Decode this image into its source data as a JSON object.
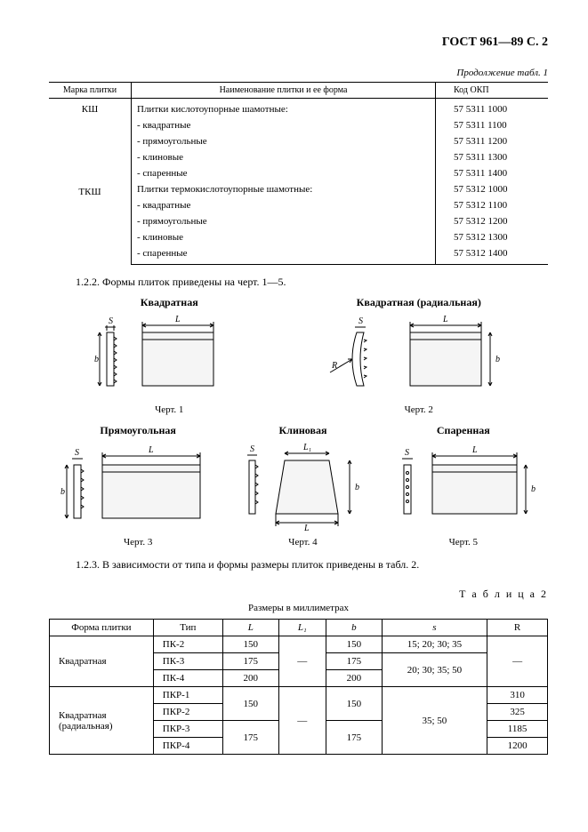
{
  "header": "ГОСТ 961—89 С. 2",
  "continuation": "Продолжение табл. 1",
  "table1": {
    "headers": [
      "Марка плитки",
      "Наименование плитки и ее форма",
      "Код ОКП"
    ],
    "groups": [
      {
        "brand": "КШ",
        "title": "Плитки кислотоупорные шамотные:",
        "title_code": "57 5311 1000",
        "items": [
          {
            "name": "- квадратные",
            "code": "57 5311 1100"
          },
          {
            "name": "- прямоугольные",
            "code": "57 5311 1200"
          },
          {
            "name": "- клиновые",
            "code": "57 5311 1300"
          },
          {
            "name": "- спаренные",
            "code": "57 5311 1400"
          }
        ]
      },
      {
        "brand": "ТКШ",
        "title": "Плитки термокислотоупорные шамотные:",
        "title_code": "57 5312 1000",
        "items": [
          {
            "name": "- квадратные",
            "code": "57 5312 1100"
          },
          {
            "name": "- прямоугольные",
            "code": "57 5312 1200"
          },
          {
            "name": "- клиновые",
            "code": "57 5312 1300"
          },
          {
            "name": "- спаренные",
            "code": "57 5312 1400"
          }
        ]
      }
    ]
  },
  "para1": "1.2.2.  Формы плиток приведены на черт. 1—5.",
  "figures": {
    "row1": [
      {
        "title": "Квадратная",
        "caption": "Черт. 1",
        "labels": {
          "S": "S",
          "L": "L",
          "b": "b"
        }
      },
      {
        "title": "Квадратная (радиальная)",
        "caption": "Черт. 2",
        "labels": {
          "S": "S",
          "L": "L",
          "b": "b",
          "R": "R"
        }
      }
    ],
    "row2": [
      {
        "title": "Прямоугольная",
        "caption": "Черт. 3",
        "labels": {
          "S": "S",
          "L": "L",
          "b": "b"
        }
      },
      {
        "title": "Клиновая",
        "caption": "Черт. 4",
        "labels": {
          "S": "S",
          "L1": "L₁",
          "L": "L",
          "b": "b"
        }
      },
      {
        "title": "Спаренная",
        "caption": "Черт. 5",
        "labels": {
          "S": "S",
          "L": "L",
          "b": "b"
        }
      }
    ]
  },
  "para2": "1.2.3.  В зависимости от типа и формы размеры плиток приведены в табл. 2.",
  "table2": {
    "label": "Т а б л и ц а  2",
    "units": "Размеры в миллиметрах",
    "headers": [
      "Форма плитки",
      "Тип",
      "L",
      "L₁",
      "b",
      "s",
      "R"
    ],
    "rows": [
      {
        "form": "Квадратная",
        "form_rowspan": 3,
        "type": "ПК-2",
        "L": "150",
        "L1": "—",
        "L1_rowspan": 3,
        "b": "150",
        "s": "15; 20; 30; 35",
        "R": "—",
        "R_rowspan": 3
      },
      {
        "type": "ПК-3",
        "L": "175",
        "b": "175",
        "s": "20; 30; 35; 50",
        "s_rowspan": 2
      },
      {
        "type": "ПК-4",
        "L": "200",
        "b": "200"
      },
      {
        "form": "Квадратная (радиальная)",
        "form_rowspan": 4,
        "type": "ПКР-1",
        "L": "150",
        "L_rowspan": 2,
        "L1": "—",
        "L1_rowspan": 4,
        "b": "150",
        "b_rowspan": 2,
        "s": "35; 50",
        "s_rowspan": 4,
        "R": "310"
      },
      {
        "type": "ПКР-2",
        "R": "325"
      },
      {
        "type": "ПКР-3",
        "L": "175",
        "L_rowspan": 2,
        "b": "175",
        "b_rowspan": 2,
        "R": "1185"
      },
      {
        "type": "ПКР-4",
        "R": "1200"
      }
    ]
  }
}
